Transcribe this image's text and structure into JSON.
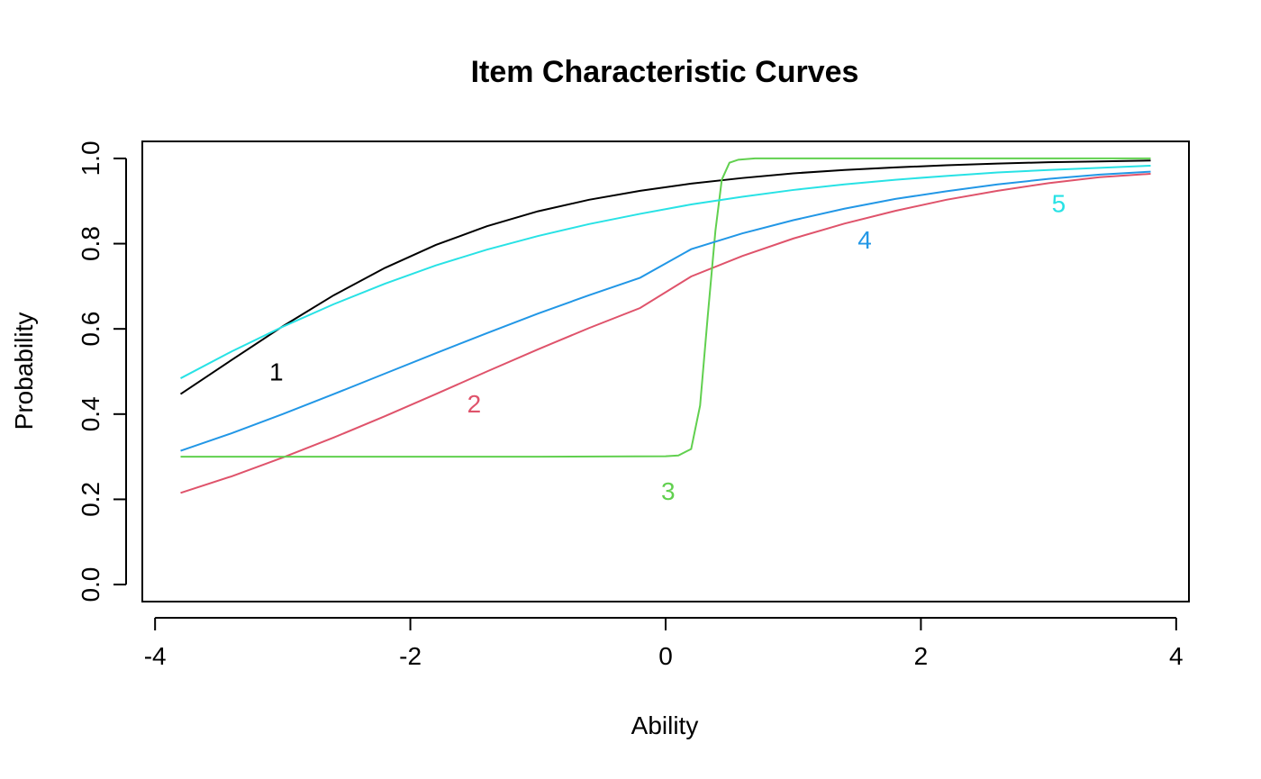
{
  "chart_data": {
    "type": "line",
    "title": "Item Characteristic Curves",
    "xlabel": "Ability",
    "ylabel": "Probability",
    "xlim": [
      -4.1,
      4.1
    ],
    "ylim": [
      -0.04,
      1.04
    ],
    "xticks": [
      -4,
      -2,
      0,
      2,
      4
    ],
    "xtick_labels": [
      "-4",
      "-2",
      "0",
      "2",
      "4"
    ],
    "yticks": [
      0.0,
      0.2,
      0.4,
      0.6,
      0.8,
      1.0
    ],
    "ytick_labels": [
      "0.0",
      "0.2",
      "0.4",
      "0.6",
      "0.8",
      "1.0"
    ],
    "grid": false,
    "series": [
      {
        "name": "1",
        "color": "#000000",
        "x": [
          -3.8,
          -3.4,
          -3.0,
          -2.6,
          -2.2,
          -1.8,
          -1.4,
          -1.0,
          -0.6,
          -0.2,
          0.2,
          0.6,
          1.0,
          1.4,
          1.8,
          2.2,
          2.6,
          3.0,
          3.4,
          3.8
        ],
        "y": [
          0.447,
          0.527,
          0.606,
          0.679,
          0.743,
          0.797,
          0.841,
          0.876,
          0.903,
          0.924,
          0.941,
          0.954,
          0.965,
          0.973,
          0.979,
          0.984,
          0.988,
          0.991,
          0.993,
          0.995
        ]
      },
      {
        "name": "2",
        "color": "#DF536B",
        "x": [
          -3.8,
          -3.4,
          -3.0,
          -2.6,
          -2.2,
          -1.8,
          -1.4,
          -1.0,
          -0.6,
          -0.2,
          0.2,
          0.6,
          1.0,
          1.4,
          1.8,
          2.2,
          2.6,
          3.0,
          3.4,
          3.8
        ],
        "y": [
          0.215,
          0.254,
          0.298,
          0.345,
          0.395,
          0.447,
          0.5,
          0.552,
          0.602,
          0.649,
          0.723,
          0.771,
          0.812,
          0.847,
          0.877,
          0.903,
          0.924,
          0.942,
          0.956,
          0.964
        ]
      },
      {
        "name": "3",
        "color": "#61D04F",
        "x": [
          -3.8,
          -1.0,
          0.0,
          0.1,
          0.2,
          0.27,
          0.33,
          0.39,
          0.44,
          0.5,
          0.57,
          0.7,
          1.5,
          3.8
        ],
        "y": [
          0.3,
          0.3,
          0.301,
          0.303,
          0.318,
          0.42,
          0.63,
          0.83,
          0.95,
          0.99,
          0.997,
          1.0,
          1.0,
          1.0
        ]
      },
      {
        "name": "4",
        "color": "#2297E6",
        "x": [
          -3.8,
          -3.4,
          -3.0,
          -2.6,
          -2.2,
          -1.8,
          -1.4,
          -1.0,
          -0.6,
          -0.2,
          0.2,
          0.6,
          1.0,
          1.4,
          1.8,
          2.2,
          2.6,
          3.0,
          3.4,
          3.8
        ],
        "y": [
          0.314,
          0.355,
          0.4,
          0.447,
          0.495,
          0.543,
          0.59,
          0.636,
          0.679,
          0.72,
          0.787,
          0.824,
          0.855,
          0.882,
          0.905,
          0.923,
          0.939,
          0.952,
          0.962,
          0.969
        ]
      },
      {
        "name": "5",
        "color": "#28E2E5",
        "x": [
          -3.8,
          -3.4,
          -3.0,
          -2.6,
          -2.2,
          -1.8,
          -1.4,
          -1.0,
          -0.6,
          -0.2,
          0.2,
          0.6,
          1.0,
          1.4,
          1.8,
          2.2,
          2.6,
          3.0,
          3.4,
          3.8
        ],
        "y": [
          0.484,
          0.547,
          0.605,
          0.658,
          0.706,
          0.749,
          0.786,
          0.818,
          0.846,
          0.87,
          0.892,
          0.91,
          0.926,
          0.939,
          0.95,
          0.959,
          0.967,
          0.973,
          0.978,
          0.983
        ]
      }
    ],
    "annotations": [
      {
        "text": "1",
        "x": -3.05,
        "y": 0.5,
        "color": "#000000"
      },
      {
        "text": "2",
        "x": -1.5,
        "y": 0.425,
        "color": "#DF536B"
      },
      {
        "text": "3",
        "x": 0.02,
        "y": 0.22,
        "color": "#61D04F"
      },
      {
        "text": "4",
        "x": 1.56,
        "y": 0.81,
        "color": "#2297E6"
      },
      {
        "text": "5",
        "x": 3.08,
        "y": 0.895,
        "color": "#28E2E5"
      }
    ]
  }
}
